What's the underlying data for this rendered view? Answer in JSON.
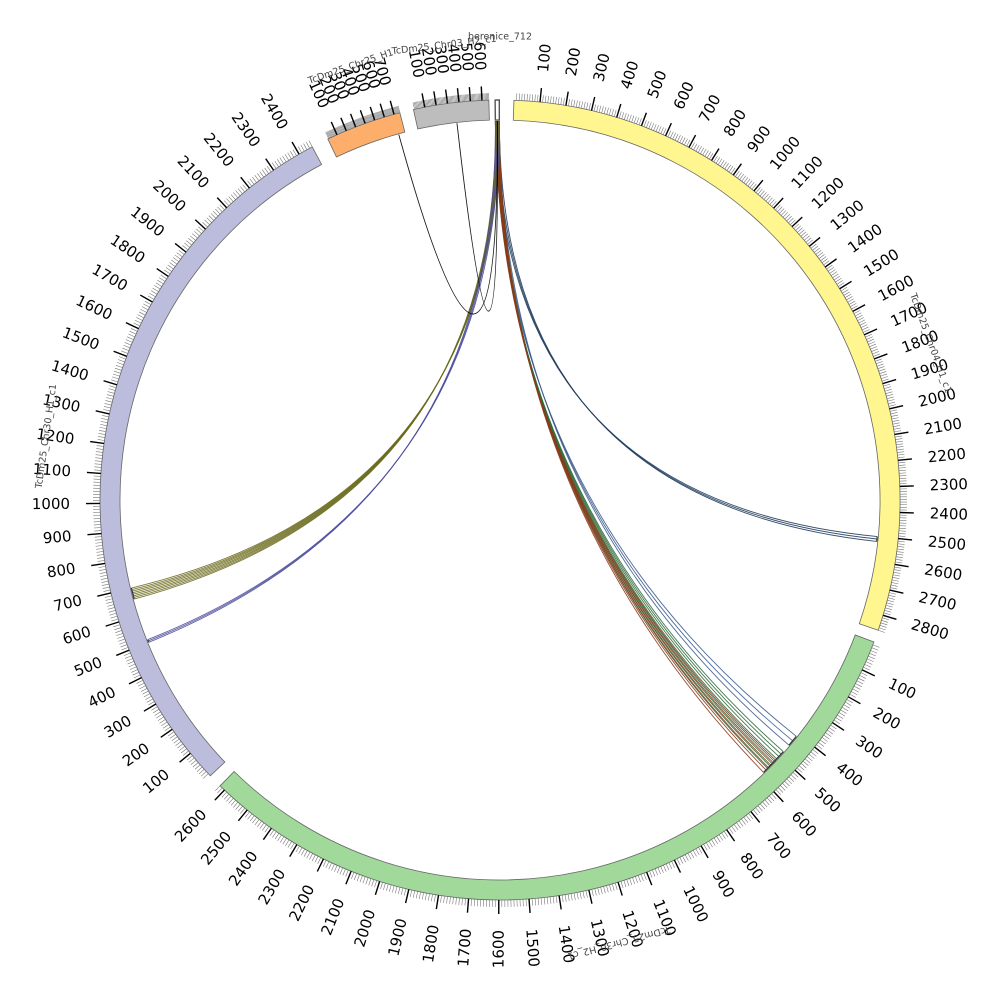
{
  "chart_data": {
    "type": "chord",
    "segments": [
      {
        "name": "berenice_712",
        "length": 2,
        "color": "#ffffff",
        "tick_step": 0
      },
      {
        "name": "TcDm25_Chr04_H1_c1",
        "length": 2860,
        "color": "#fff68f",
        "tick_step": 100
      },
      {
        "name": "TcDm25_Chr30_H2_c1",
        "length": 2620,
        "color": "#a1d99b",
        "tick_step": 100
      },
      {
        "name": "TcDm25_Chr30_H1_c1",
        "length": 2450,
        "color": "#bcbddc",
        "tick_step": 100
      },
      {
        "name": "TcDm25_Chr25_H1",
        "length": 760,
        "color": "#fdae6b",
        "tick_step": 100
      },
      {
        "name": "TcDm25_Chr03_H2_c1",
        "length": 660,
        "color": "#bdbdbd",
        "tick_step": 100
      }
    ],
    "links": [
      {
        "source": "berenice_712",
        "target": "TcDm25_Chr04_H1_c1",
        "target_start": 2500,
        "target_end": 2520,
        "color": "#1f3b5c",
        "count": 3
      },
      {
        "source": "berenice_712",
        "target": "TcDm25_Chr30_H2_c1",
        "target_start": 410,
        "target_end": 450,
        "color": "#3b5b8c",
        "count": 3
      },
      {
        "source": "berenice_712",
        "target": "TcDm25_Chr30_H2_c1",
        "target_start": 480,
        "target_end": 560,
        "color": "#2e6b3a",
        "count": 8
      },
      {
        "source": "berenice_712",
        "target": "TcDm25_Chr30_H2_c1",
        "target_start": 520,
        "target_end": 580,
        "color": "#8b3a1a",
        "count": 6
      },
      {
        "source": "berenice_712",
        "target": "TcDm25_Chr30_H1_c1",
        "target_start": 660,
        "target_end": 700,
        "color": "#6b6b1f",
        "count": 8
      },
      {
        "source": "berenice_712",
        "target": "TcDm25_Chr30_H1_c1",
        "target_start": 500,
        "target_end": 510,
        "color": "#4a4a9c",
        "count": 3
      },
      {
        "source": "berenice_712",
        "target": "TcDm25_Chr25_H1",
        "target_start": 690,
        "target_end": 695,
        "color": "#000000",
        "count": 1
      },
      {
        "source": "berenice_712",
        "target": "TcDm25_Chr03_H2_c1",
        "target_start": 360,
        "target_end": 365,
        "color": "#000000",
        "count": 1
      }
    ]
  }
}
